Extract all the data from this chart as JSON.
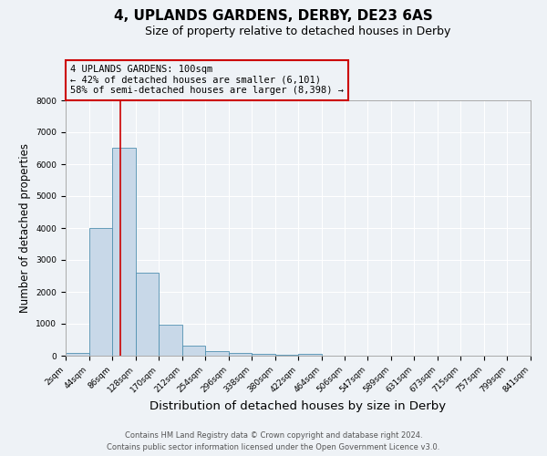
{
  "title1": "4, UPLANDS GARDENS, DERBY, DE23 6AS",
  "title2": "Size of property relative to detached houses in Derby",
  "xlabel": "Distribution of detached houses by size in Derby",
  "ylabel": "Number of detached properties",
  "footnote1": "Contains HM Land Registry data © Crown copyright and database right 2024.",
  "footnote2": "Contains public sector information licensed under the Open Government Licence v3.0.",
  "bin_edges": [
    2,
    44,
    86,
    128,
    170,
    212,
    254,
    296,
    338,
    380,
    422,
    464,
    506,
    547,
    589,
    631,
    673,
    715,
    757,
    799,
    841
  ],
  "bar_heights": [
    75,
    4000,
    6500,
    2600,
    960,
    320,
    130,
    90,
    50,
    30,
    60,
    5,
    3,
    2,
    2,
    1,
    1,
    1,
    1,
    1
  ],
  "bar_color": "#c8d8e8",
  "bar_edge_color": "#5090b0",
  "property_size": 100,
  "vline_color": "#cc0000",
  "annotation_line1": "4 UPLANDS GARDENS: 100sqm",
  "annotation_line2": "← 42% of detached houses are smaller (6,101)",
  "annotation_line3": "58% of semi-detached houses are larger (8,398) →",
  "annotation_box_color": "#cc0000",
  "ylim": [
    0,
    8000
  ],
  "yticks": [
    0,
    1000,
    2000,
    3000,
    4000,
    5000,
    6000,
    7000,
    8000
  ],
  "bg_color": "#eef2f6",
  "grid_color": "#ffffff",
  "title1_fontsize": 11,
  "title2_fontsize": 9,
  "xlabel_fontsize": 9.5,
  "ylabel_fontsize": 8.5,
  "tick_fontsize": 6.5,
  "footnote_fontsize": 6,
  "annot_fontsize": 7.5
}
